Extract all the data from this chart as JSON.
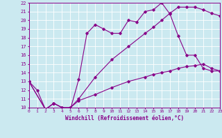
{
  "xlabel": "Windchill (Refroidissement éolien,°C)",
  "bg_color": "#cbe9f0",
  "line_color": "#880088",
  "grid_color": "#ffffff",
  "xmin": 0,
  "xmax": 23,
  "ymin": 10,
  "ymax": 22,
  "line1_x": [
    0,
    1,
    2,
    3,
    4,
    5,
    6,
    7,
    8,
    9,
    10,
    11,
    12,
    13,
    14,
    15,
    16,
    17,
    18,
    19,
    20,
    21,
    22,
    23
  ],
  "line1_y": [
    13.0,
    12.0,
    9.8,
    10.5,
    10.0,
    9.8,
    13.2,
    18.5,
    19.5,
    19.0,
    18.5,
    18.5,
    20.0,
    19.8,
    21.0,
    21.2,
    22.0,
    20.7,
    18.2,
    16.0,
    16.0,
    14.5,
    14.2,
    14.2
  ],
  "line2_x": [
    0,
    2,
    3,
    4,
    5,
    6,
    8,
    10,
    12,
    14,
    15,
    16,
    17,
    18,
    19,
    20,
    21,
    22,
    23
  ],
  "line2_y": [
    13.0,
    9.8,
    10.5,
    10.0,
    10.0,
    11.0,
    13.5,
    15.5,
    17.0,
    18.5,
    19.2,
    20.0,
    20.8,
    21.5,
    21.5,
    21.5,
    21.2,
    20.8,
    20.5
  ],
  "line3_x": [
    0,
    2,
    3,
    4,
    5,
    6,
    8,
    10,
    12,
    14,
    15,
    16,
    17,
    18,
    19,
    20,
    21,
    22,
    23
  ],
  "line3_y": [
    13.0,
    9.8,
    10.5,
    10.0,
    10.0,
    10.8,
    11.5,
    12.3,
    13.0,
    13.5,
    13.8,
    14.0,
    14.2,
    14.5,
    14.7,
    14.8,
    15.0,
    14.5,
    14.2
  ]
}
